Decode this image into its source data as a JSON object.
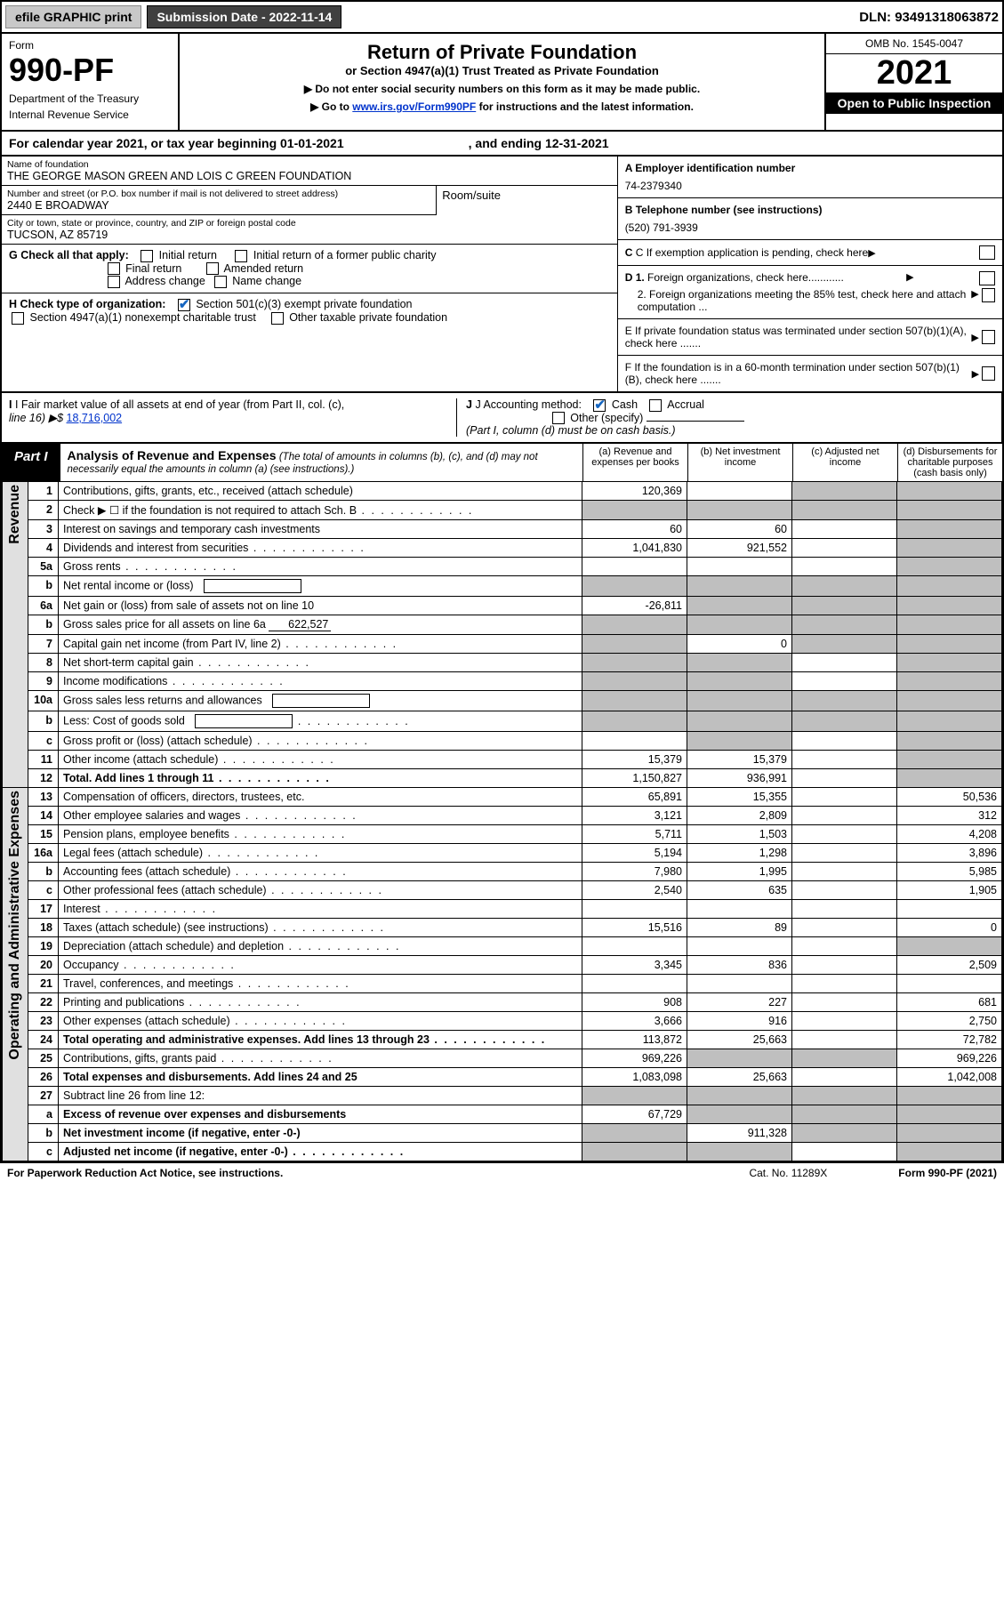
{
  "topbar": {
    "efile": "efile GRAPHIC print",
    "submission_label": "Submission Date - 2022-11-14",
    "dln": "DLN: 93491318063872"
  },
  "head": {
    "form_label": "Form",
    "form_num": "990-PF",
    "dept": "Department of the Treasury",
    "irs": "Internal Revenue Service",
    "title": "Return of Private Foundation",
    "subtitle": "or Section 4947(a)(1) Trust Treated as Private Foundation",
    "note1": "▶ Do not enter social security numbers on this form as it may be made public.",
    "note2_pre": "▶ Go to ",
    "note2_link": "www.irs.gov/Form990PF",
    "note2_post": " for instructions and the latest information.",
    "omb": "OMB No. 1545-0047",
    "year": "2021",
    "open": "Open to Public Inspection"
  },
  "calyear": {
    "pre": "For calendar year 2021, or tax year beginning ",
    "start": "01-01-2021",
    "mid": ", and ending ",
    "end": "12-31-2021"
  },
  "entity": {
    "name_lbl": "Name of foundation",
    "name": "THE GEORGE MASON GREEN AND LOIS C GREEN FOUNDATION",
    "addr_lbl": "Number and street (or P.O. box number if mail is not delivered to street address)",
    "addr": "2440 E BROADWAY",
    "room_lbl": "Room/suite",
    "city_lbl": "City or town, state or province, country, and ZIP or foreign postal code",
    "city": "TUCSON, AZ  85719",
    "A_lbl": "A Employer identification number",
    "A_val": "74-2379340",
    "B_lbl": "B Telephone number (see instructions)",
    "B_val": "(520) 791-3939",
    "C_lbl": "C If exemption application is pending, check here",
    "D1_lbl": "D 1. Foreign organizations, check here",
    "D2_lbl": "2. Foreign organizations meeting the 85% test, check here and attach computation ...",
    "E_lbl": "E  If private foundation status was terminated under section 507(b)(1)(A), check here .......",
    "F_lbl": "F  If the foundation is in a 60-month termination under section 507(b)(1)(B), check here .......",
    "G_lbl": "G Check all that apply:",
    "G_opts": [
      "Initial return",
      "Final return",
      "Address change",
      "Initial return of a former public charity",
      "Amended return",
      "Name change"
    ],
    "H_lbl": "H Check type of organization:",
    "H1": "Section 501(c)(3) exempt private foundation",
    "H2": "Section 4947(a)(1) nonexempt charitable trust",
    "H3": "Other taxable private foundation",
    "I_lbl": "I Fair market value of all assets at end of year (from Part II, col. (c),",
    "I_line": "line 16) ▶$",
    "I_val": "18,716,002",
    "J_lbl": "J Accounting method:",
    "J_cash": "Cash",
    "J_accrual": "Accrual",
    "J_other": "Other (specify)",
    "J_note": "(Part I, column (d) must be on cash basis.)"
  },
  "part1": {
    "tag": "Part I",
    "title": "Analysis of Revenue and Expenses",
    "title_note": "(The total of amounts in columns (b), (c), and (d) may not necessarily equal the amounts in column (a) (see instructions).)",
    "cols": {
      "a": "(a)   Revenue and expenses per books",
      "b": "(b)   Net investment income",
      "c": "(c)   Adjusted net income",
      "d": "(d)   Disbursements for charitable purposes (cash basis only)"
    },
    "side_rev": "Revenue",
    "side_exp": "Operating and Administrative Expenses",
    "rows": [
      {
        "n": "1",
        "label": "Contributions, gifts, grants, etc., received (attach schedule)",
        "a": "120,369",
        "b": "",
        "c": "g",
        "d": "g"
      },
      {
        "n": "2",
        "label": "Check ▶ ☐ if the foundation is not required to attach Sch. B",
        "dots": true,
        "a": "g",
        "b": "g",
        "c": "g",
        "d": "g"
      },
      {
        "n": "3",
        "label": "Interest on savings and temporary cash investments",
        "a": "60",
        "b": "60",
        "c": "",
        "d": "g"
      },
      {
        "n": "4",
        "label": "Dividends and interest from securities",
        "dots": true,
        "a": "1,041,830",
        "b": "921,552",
        "c": "",
        "d": "g"
      },
      {
        "n": "5a",
        "label": "Gross rents",
        "dots": true,
        "a": "",
        "b": "",
        "c": "",
        "d": "g"
      },
      {
        "n": "b",
        "label": "Net rental income or (loss)",
        "inlineBox": true,
        "a": "g",
        "b": "g",
        "c": "g",
        "d": "g"
      },
      {
        "n": "6a",
        "label": "Net gain or (loss) from sale of assets not on line 10",
        "a": "-26,811",
        "b": "g",
        "c": "g",
        "d": "g"
      },
      {
        "n": "b",
        "label": "Gross sales price for all assets on line 6a",
        "inlineVal": "622,527",
        "a": "g",
        "b": "g",
        "c": "g",
        "d": "g"
      },
      {
        "n": "7",
        "label": "Capital gain net income (from Part IV, line 2)",
        "dots": true,
        "a": "g",
        "b": "0",
        "c": "g",
        "d": "g"
      },
      {
        "n": "8",
        "label": "Net short-term capital gain",
        "dots": true,
        "a": "g",
        "b": "g",
        "c": "",
        "d": "g"
      },
      {
        "n": "9",
        "label": "Income modifications",
        "dots": true,
        "a": "g",
        "b": "g",
        "c": "",
        "d": "g"
      },
      {
        "n": "10a",
        "label": "Gross sales less returns and allowances",
        "inlineBox": true,
        "a": "g",
        "b": "g",
        "c": "g",
        "d": "g"
      },
      {
        "n": "b",
        "label": "Less: Cost of goods sold",
        "dots": true,
        "inlineBox": true,
        "a": "g",
        "b": "g",
        "c": "g",
        "d": "g"
      },
      {
        "n": "c",
        "label": "Gross profit or (loss) (attach schedule)",
        "dots": true,
        "a": "",
        "b": "g",
        "c": "",
        "d": "g"
      },
      {
        "n": "11",
        "label": "Other income (attach schedule)",
        "dots": true,
        "a": "15,379",
        "b": "15,379",
        "c": "",
        "d": "g"
      },
      {
        "n": "12",
        "label": "Total. Add lines 1 through 11",
        "dots": true,
        "bold": true,
        "a": "1,150,827",
        "b": "936,991",
        "c": "",
        "d": "g"
      },
      {
        "n": "13",
        "label": "Compensation of officers, directors, trustees, etc.",
        "a": "65,891",
        "b": "15,355",
        "c": "",
        "d": "50,536"
      },
      {
        "n": "14",
        "label": "Other employee salaries and wages",
        "dots": true,
        "a": "3,121",
        "b": "2,809",
        "c": "",
        "d": "312"
      },
      {
        "n": "15",
        "label": "Pension plans, employee benefits",
        "dots": true,
        "a": "5,711",
        "b": "1,503",
        "c": "",
        "d": "4,208"
      },
      {
        "n": "16a",
        "label": "Legal fees (attach schedule)",
        "dots": true,
        "a": "5,194",
        "b": "1,298",
        "c": "",
        "d": "3,896"
      },
      {
        "n": "b",
        "label": "Accounting fees (attach schedule)",
        "dots": true,
        "a": "7,980",
        "b": "1,995",
        "c": "",
        "d": "5,985"
      },
      {
        "n": "c",
        "label": "Other professional fees (attach schedule)",
        "dots": true,
        "a": "2,540",
        "b": "635",
        "c": "",
        "d": "1,905"
      },
      {
        "n": "17",
        "label": "Interest",
        "dots": true,
        "a": "",
        "b": "",
        "c": "",
        "d": ""
      },
      {
        "n": "18",
        "label": "Taxes (attach schedule) (see instructions)",
        "dots": true,
        "a": "15,516",
        "b": "89",
        "c": "",
        "d": "0"
      },
      {
        "n": "19",
        "label": "Depreciation (attach schedule) and depletion",
        "dots": true,
        "a": "",
        "b": "",
        "c": "",
        "d": "g"
      },
      {
        "n": "20",
        "label": "Occupancy",
        "dots": true,
        "a": "3,345",
        "b": "836",
        "c": "",
        "d": "2,509"
      },
      {
        "n": "21",
        "label": "Travel, conferences, and meetings",
        "dots": true,
        "a": "",
        "b": "",
        "c": "",
        "d": ""
      },
      {
        "n": "22",
        "label": "Printing and publications",
        "dots": true,
        "a": "908",
        "b": "227",
        "c": "",
        "d": "681"
      },
      {
        "n": "23",
        "label": "Other expenses (attach schedule)",
        "dots": true,
        "a": "3,666",
        "b": "916",
        "c": "",
        "d": "2,750"
      },
      {
        "n": "24",
        "label": "Total operating and administrative expenses. Add lines 13 through 23",
        "dots": true,
        "bold": true,
        "a": "113,872",
        "b": "25,663",
        "c": "",
        "d": "72,782"
      },
      {
        "n": "25",
        "label": "Contributions, gifts, grants paid",
        "dots": true,
        "a": "969,226",
        "b": "g",
        "c": "g",
        "d": "969,226"
      },
      {
        "n": "26",
        "label": "Total expenses and disbursements. Add lines 24 and 25",
        "bold": true,
        "a": "1,083,098",
        "b": "25,663",
        "c": "",
        "d": "1,042,008"
      },
      {
        "n": "27",
        "label": "Subtract line 26 from line 12:",
        "a": "g",
        "b": "g",
        "c": "g",
        "d": "g"
      },
      {
        "n": "a",
        "label": "Excess of revenue over expenses and disbursements",
        "bold": true,
        "a": "67,729",
        "b": "g",
        "c": "g",
        "d": "g"
      },
      {
        "n": "b",
        "label": "Net investment income (if negative, enter -0-)",
        "bold": true,
        "a": "g",
        "b": "911,328",
        "c": "g",
        "d": "g"
      },
      {
        "n": "c",
        "label": "Adjusted net income (if negative, enter -0-)",
        "bold": true,
        "dots": true,
        "a": "g",
        "b": "g",
        "c": "",
        "d": "g"
      }
    ]
  },
  "foot": {
    "left": "For Paperwork Reduction Act Notice, see instructions.",
    "mid": "Cat. No. 11289X",
    "right": "Form 990-PF (2021)"
  }
}
